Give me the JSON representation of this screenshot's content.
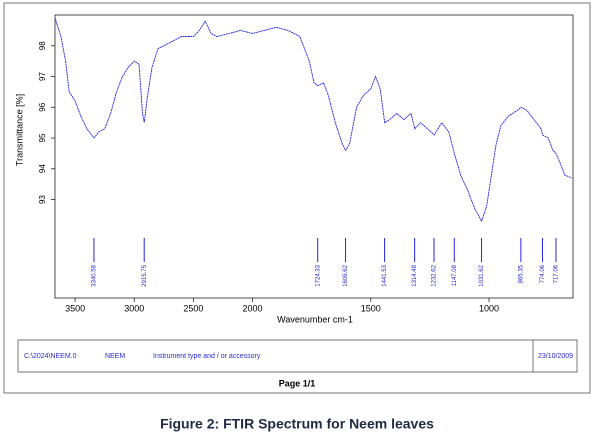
{
  "chart_data": {
    "type": "line",
    "ylabel": "Transmittance [%]",
    "xlabel": "Wavenumber cm-1",
    "color": "#2323e0",
    "xlim": [
      3670,
      645
    ],
    "x_scale_break": 2000,
    "xticks": [
      3500,
      3000,
      2500,
      2000,
      1500,
      1000
    ],
    "ylim": [
      89.8,
      99
    ],
    "yticks": [
      93,
      94,
      95,
      96,
      97,
      98
    ],
    "x": [
      3670,
      3620,
      3580,
      3550,
      3500,
      3450,
      3400,
      3340,
      3300,
      3250,
      3200,
      3150,
      3100,
      3050,
      3000,
      2960,
      2930,
      2915,
      2890,
      2850,
      2800,
      2700,
      2600,
      2500,
      2450,
      2400,
      2350,
      2300,
      2200,
      2100,
      2000,
      1900,
      1850,
      1800,
      1760,
      1740,
      1724,
      1700,
      1680,
      1650,
      1620,
      1606,
      1590,
      1560,
      1530,
      1500,
      1480,
      1460,
      1441,
      1420,
      1390,
      1360,
      1330,
      1314,
      1290,
      1260,
      1232,
      1200,
      1170,
      1147,
      1120,
      1090,
      1060,
      1031,
      1010,
      990,
      970,
      950,
      920,
      880,
      865,
      840,
      810,
      780,
      774,
      750,
      730,
      717,
      700,
      680,
      650
    ],
    "values": [
      98.9,
      98.3,
      97.5,
      96.5,
      96.2,
      95.7,
      95.3,
      95.0,
      95.2,
      95.3,
      95.8,
      96.5,
      97.0,
      97.3,
      97.5,
      97.4,
      95.8,
      95.5,
      96.3,
      97.3,
      97.9,
      98.1,
      98.3,
      98.3,
      98.5,
      98.8,
      98.4,
      98.3,
      98.4,
      98.5,
      98.4,
      98.6,
      98.5,
      98.3,
      97.5,
      96.8,
      96.7,
      96.8,
      96.4,
      95.5,
      94.8,
      94.6,
      94.8,
      96.0,
      96.4,
      96.6,
      97.0,
      96.6,
      95.5,
      95.6,
      95.8,
      95.6,
      95.8,
      95.3,
      95.5,
      95.3,
      95.1,
      95.5,
      95.2,
      94.5,
      93.8,
      93.3,
      92.7,
      92.3,
      92.8,
      93.8,
      94.8,
      95.4,
      95.7,
      95.9,
      96.0,
      95.9,
      95.6,
      95.3,
      95.1,
      95.0,
      94.6,
      94.5,
      94.2,
      93.8,
      93.7
    ],
    "peaks": [
      3340.58,
      2915.75,
      1724.33,
      1606.62,
      1441.53,
      1314.48,
      1232.62,
      1147.08,
      1031.62,
      865.35,
      774.06,
      717.06
    ],
    "footer": {
      "file": "C:\\2024\\NEEM.0",
      "sample": "NEEM",
      "instrument": "Instrument type and / or accessory",
      "date": "23/10/2009"
    },
    "page": "Page 1/1",
    "caption": "Figure 2: FTIR Spectrum for Neem leaves"
  }
}
